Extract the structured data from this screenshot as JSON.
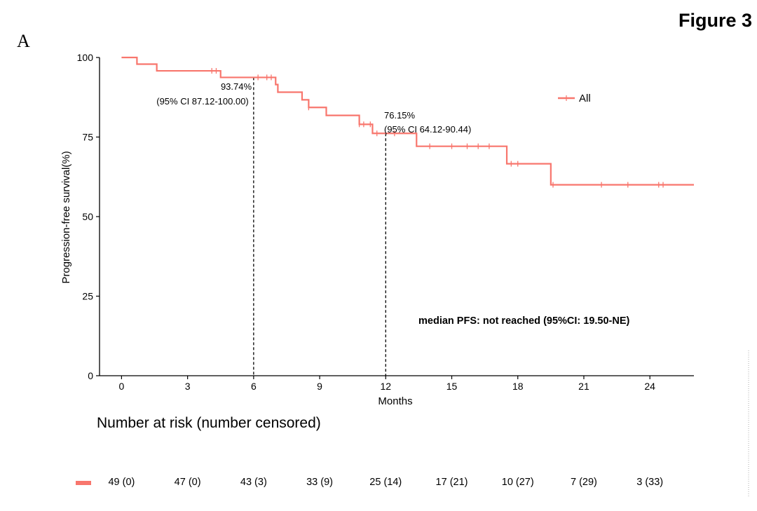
{
  "figure_label": "Figure 3",
  "panel_label": "A",
  "chart_data": {
    "type": "line",
    "xlabel": "Months",
    "ylabel": "Progression-free survival(%)",
    "xlim": [
      -1,
      26
    ],
    "ylim": [
      0,
      100
    ],
    "xticks": [
      0,
      3,
      6,
      9,
      12,
      15,
      18,
      21,
      24
    ],
    "yticks": [
      0,
      25,
      50,
      75,
      100
    ],
    "grid": false,
    "legend": {
      "position": "top-right",
      "entries": [
        "All"
      ]
    },
    "series": [
      {
        "name": "All",
        "color": "#F8766D",
        "step": true,
        "x": [
          0,
          0.7,
          1.6,
          4.5,
          7.0,
          7.1,
          8.2,
          8.5,
          9.3,
          10.8,
          11.4,
          13.4,
          17.5,
          19.5,
          26
        ],
        "y": [
          100,
          97.9,
          95.8,
          93.74,
          91.5,
          89.1,
          86.7,
          84.3,
          81.8,
          79.0,
          76.15,
          72.1,
          66.6,
          60.0,
          60.0
        ],
        "censor_x": [
          4.1,
          4.3,
          6.2,
          6.6,
          6.8,
          8.5,
          10.8,
          11.0,
          11.3,
          11.6,
          12.4,
          14.0,
          15.0,
          15.7,
          16.2,
          16.7,
          17.7,
          18.0,
          19.6,
          21.8,
          23.0,
          24.4,
          24.6
        ]
      }
    ],
    "annotations": [
      {
        "x": 6,
        "y": 93.74,
        "line1": "93.74%",
        "line2": "(95% CI 87.12-100.00)"
      },
      {
        "x": 12,
        "y": 76.15,
        "line1": "76.15%",
        "line2": "(95% CI 64.12-90.44)"
      }
    ],
    "median_text": "median PFS: not reached (95%CI: 19.50-NE)"
  },
  "risk_table": {
    "title": "Number at risk (number censored)",
    "color": "#F8766D",
    "values": [
      "49 (0)",
      "47 (0)",
      "43 (3)",
      "33 (9)",
      "25 (14)",
      "17 (21)",
      "10 (27)",
      "7 (29)",
      "3 (33)"
    ]
  }
}
